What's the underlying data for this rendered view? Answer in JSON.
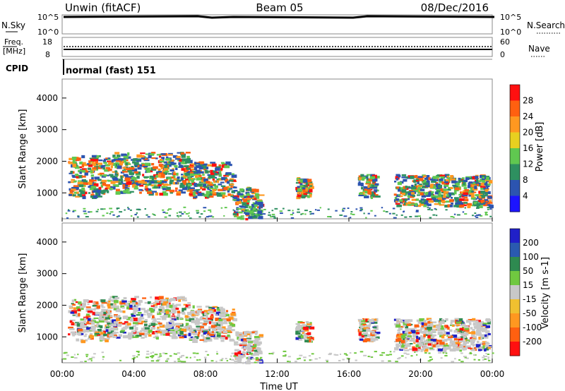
{
  "header": {
    "station": "Unwin (fitACF)",
    "beam": "Beam 05",
    "date": "08/Dec/2016"
  },
  "panels": {
    "nsky": {
      "label": "N.Sky",
      "left_ticks": [
        "10^5",
        "10^0"
      ],
      "right_ticks": [
        "10^5",
        "10^0"
      ],
      "right_label": "N.Search"
    },
    "freq": {
      "label_line1": "Freq.",
      "label_line2": "[MHz]",
      "left_ticks": [
        "18",
        "8"
      ],
      "right_ticks": [
        "60",
        "0"
      ],
      "right_label": "Nave"
    },
    "cpid": {
      "label": "CPID",
      "value": "normal (fast) 151"
    }
  },
  "chart_data": [
    {
      "type": "heatmap",
      "title": "",
      "ylabel": "Slant Range [km]",
      "xlabel": "",
      "ylim": [
        180,
        4600
      ],
      "yticks": [
        "1000",
        "2000",
        "3000",
        "4000"
      ],
      "xlim": [
        0,
        24
      ],
      "colorbar": {
        "label": "Power [dB]",
        "ticks": [
          "4",
          "8",
          "12",
          "16",
          "20",
          "24",
          "28"
        ],
        "colors": [
          "#1c14ff",
          "#2c54b0",
          "#2e9060",
          "#60c850",
          "#e8d020",
          "#ff9820",
          "#ff6010",
          "#ff1010"
        ]
      },
      "note_echo_regions_hours_km": [
        [
          0.3,
          2.5,
          900,
          2200
        ],
        [
          2.5,
          7.0,
          1000,
          2300
        ],
        [
          7.0,
          9.5,
          900,
          2000
        ],
        [
          9.5,
          11.0,
          200,
          1200
        ],
        [
          13.0,
          13.8,
          900,
          1500
        ],
        [
          16.5,
          17.5,
          900,
          1600
        ],
        [
          18.5,
          23.8,
          600,
          1600
        ]
      ]
    },
    {
      "type": "heatmap",
      "title": "",
      "ylabel": "Slant Range [km]",
      "xlabel": "Time UT",
      "ylim": [
        180,
        4600
      ],
      "yticks": [
        "1000",
        "2000",
        "3000",
        "4000"
      ],
      "xlim": [
        0,
        24
      ],
      "xticks": [
        "00:00",
        "04:00",
        "08:00",
        "12:00",
        "16:00",
        "20:00",
        "00:00"
      ],
      "colorbar": {
        "label": "Velocity [m s-1]",
        "ticks": [
          "200",
          "100",
          "50",
          "15",
          "-15",
          "-50",
          "-100",
          "-200"
        ],
        "colors": [
          "#2020c8",
          "#2a5ab0",
          "#2e8a50",
          "#70c840",
          "#c8c8c8",
          "#f0c030",
          "#ff9820",
          "#ff6010",
          "#ff1010"
        ]
      }
    }
  ],
  "colors": {
    "ground": "#c8c8c8",
    "gray_frame": "#888888"
  }
}
